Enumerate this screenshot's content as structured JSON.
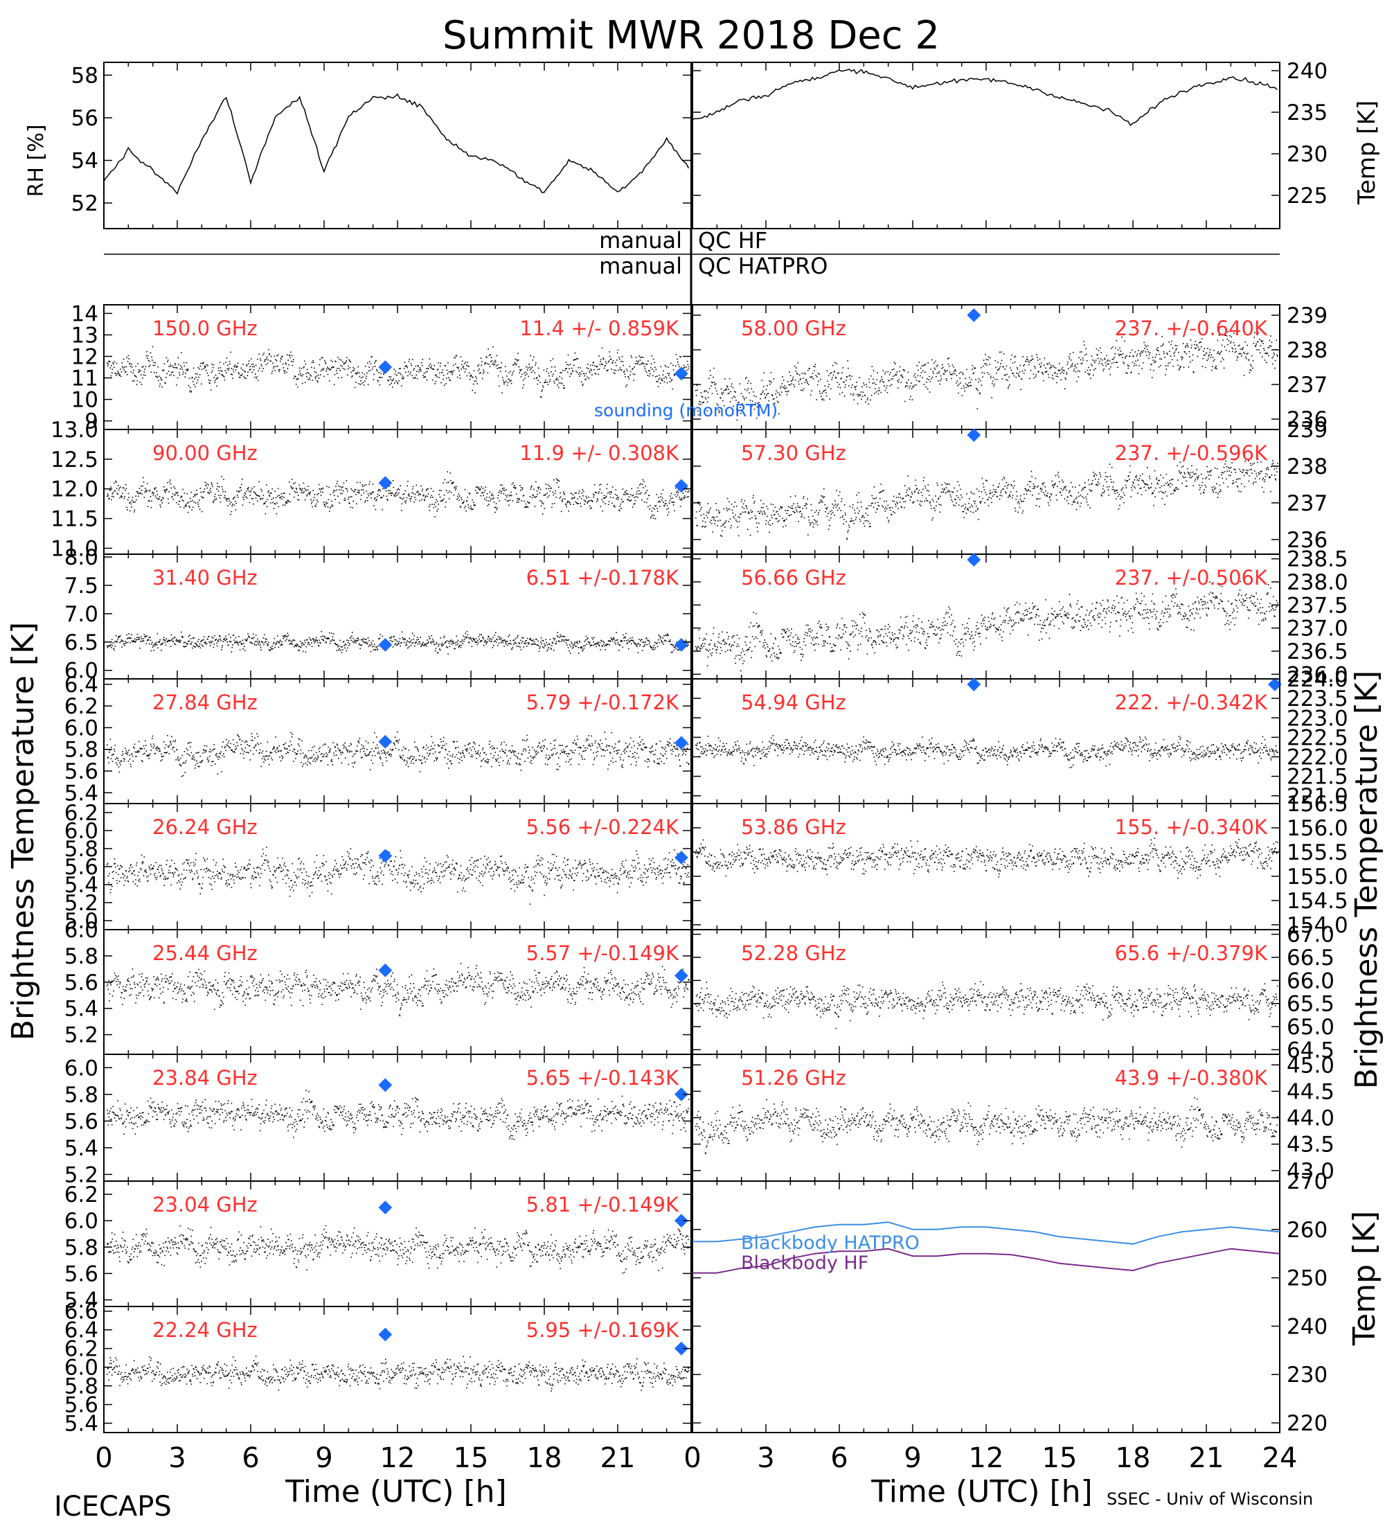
{
  "title": "Summit MWR 2018 Dec  2",
  "footer": {
    "left": "ICECAPS",
    "right": "SSEC - Univ of Wisconsin"
  },
  "xaxis": {
    "label": "Time (UTC) [h]",
    "ticks_left": [
      "0",
      "3",
      "6",
      "9",
      "12",
      "15",
      "18",
      "21"
    ],
    "ticks_right": [
      "0",
      "3",
      "6",
      "9",
      "12",
      "15",
      "18",
      "21",
      "24"
    ],
    "range": [
      0,
      24
    ]
  },
  "axis_labels": {
    "left_main": "Brightness Temperature [K]",
    "right_main": "Brightness Temperature [K]",
    "rh": "RH [%]",
    "temp_top": "Temp [K]",
    "temp_bottom": "Temp [K]"
  },
  "qc": {
    "hf_left": "manual",
    "hf_right": "QC HF",
    "hatpro_left": "manual",
    "hatpro_right": "QC HATPRO"
  },
  "legend": {
    "sounding": "sounding (monoRTM)",
    "bb_hatpro": "Blackbody HATPRO",
    "bb_hf": "Blackbody HF"
  },
  "colors": {
    "freq_text": "#ff3030",
    "sounding_marker": "#1a6cff",
    "bb_hatpro": "#3a8ee6",
    "bb_hf": "#7a2a8a",
    "trace": "#000000"
  },
  "chart_data": [
    {
      "type": "line",
      "id": "rh",
      "ylabel": "RH [%]",
      "yticks": [
        "52",
        "54",
        "56",
        "58"
      ],
      "ylim": [
        50.8,
        58.6
      ],
      "x": [
        0,
        1,
        2,
        3,
        4,
        5,
        6,
        7,
        8,
        9,
        10,
        11,
        12,
        13,
        14,
        15,
        16,
        17,
        18,
        19,
        20,
        21,
        22,
        23,
        24
      ],
      "y": [
        53,
        54.5,
        53.5,
        52.5,
        55,
        57,
        53,
        56,
        57,
        53.5,
        56,
        57,
        57,
        56.5,
        55,
        54.2,
        54,
        53.2,
        52.5,
        54,
        53.5,
        52.5,
        53.5,
        55,
        53.5
      ]
    },
    {
      "type": "line",
      "id": "temp_air",
      "ylabel": "Temp [K]",
      "yticks": [
        "225",
        "230",
        "235",
        "240"
      ],
      "ylim": [
        221,
        241
      ],
      "x": [
        0,
        1,
        2,
        3,
        4,
        5,
        6,
        7,
        8,
        9,
        10,
        11,
        12,
        13,
        14,
        15,
        16,
        17,
        18,
        19,
        20,
        21,
        22,
        23,
        24
      ],
      "y": [
        234,
        235,
        236.5,
        237,
        238.5,
        239,
        240,
        240,
        239,
        238,
        238.5,
        238.8,
        239,
        238.5,
        237.8,
        236.8,
        236,
        235.2,
        233.5,
        236,
        237.5,
        238.5,
        239.2,
        238.6,
        237.8
      ]
    },
    {
      "type": "scatter",
      "id": "ch150",
      "freq": "150.0 GHz",
      "stats": "11.4 +/- 0.859K",
      "ylim": [
        8.6,
        14.4
      ],
      "yticks": [
        "9",
        "10",
        "11",
        "12",
        "13",
        "14"
      ],
      "mean": 11.4,
      "sd": 0.859,
      "sounding_x": [
        11.5,
        23.6
      ],
      "sounding_y": [
        11.5,
        11.2
      ]
    },
    {
      "type": "scatter",
      "id": "ch90",
      "freq": "90.00 GHz",
      "stats": "11.9 +/- 0.308K",
      "ylim": [
        10.9,
        13.0
      ],
      "yticks": [
        "11.0",
        "11.5",
        "12.0",
        "12.5",
        "13.0"
      ],
      "mean": 11.9,
      "sd": 0.308,
      "sounding_x": [
        11.5,
        23.6
      ],
      "sounding_y": [
        12.1,
        12.05
      ]
    },
    {
      "type": "scatter",
      "id": "ch3140",
      "freq": "31.40 GHz",
      "stats": "6.51 +/-0.178K",
      "ylim": [
        5.85,
        8.05
      ],
      "yticks": [
        "6.0",
        "6.5",
        "7.0",
        "7.5",
        "8.0"
      ],
      "mean": 6.51,
      "sd": 0.178,
      "sounding_x": [
        11.5,
        23.6
      ],
      "sounding_y": [
        6.45,
        6.45
      ]
    },
    {
      "type": "scatter",
      "id": "ch2784",
      "freq": "27.84 GHz",
      "stats": "5.79 +/-0.172K",
      "ylim": [
        5.3,
        6.45
      ],
      "yticks": [
        "5.4",
        "5.6",
        "5.8",
        "6.0",
        "6.2",
        "6.4"
      ],
      "mean": 5.79,
      "sd": 0.172,
      "sounding_x": [
        11.5,
        23.6
      ],
      "sounding_y": [
        5.87,
        5.86
      ]
    },
    {
      "type": "scatter",
      "id": "ch2624",
      "freq": "26.24 GHz",
      "stats": "5.56 +/-0.224K",
      "ylim": [
        4.9,
        6.3
      ],
      "yticks": [
        "5.0",
        "5.2",
        "5.4",
        "5.6",
        "5.8",
        "6.0",
        "6.2"
      ],
      "mean": 5.56,
      "sd": 0.224,
      "sounding_x": [
        11.5,
        23.6
      ],
      "sounding_y": [
        5.72,
        5.7
      ]
    },
    {
      "type": "scatter",
      "id": "ch2544",
      "freq": "25.44 GHz",
      "stats": "5.57 +/-0.149K",
      "ylim": [
        5.05,
        6.0
      ],
      "yticks": [
        "5.2",
        "5.4",
        "5.6",
        "5.8",
        "6.0"
      ],
      "mean": 5.57,
      "sd": 0.149,
      "sounding_x": [
        11.5,
        23.6
      ],
      "sounding_y": [
        5.69,
        5.65
      ]
    },
    {
      "type": "scatter",
      "id": "ch2384",
      "freq": "23.84 GHz",
      "stats": "5.65 +/-0.143K",
      "ylim": [
        5.15,
        6.1
      ],
      "yticks": [
        "5.2",
        "5.4",
        "5.6",
        "5.8",
        "6.0"
      ],
      "mean": 5.65,
      "sd": 0.143,
      "sounding_x": [
        11.5,
        23.6
      ],
      "sounding_y": [
        5.87,
        5.8
      ]
    },
    {
      "type": "scatter",
      "id": "ch2304",
      "freq": "23.04 GHz",
      "stats": "5.81 +/-0.149K",
      "ylim": [
        5.35,
        6.3
      ],
      "yticks": [
        "5.4",
        "5.6",
        "5.8",
        "6.0",
        "6.2"
      ],
      "mean": 5.81,
      "sd": 0.149,
      "sounding_x": [
        11.5,
        23.6
      ],
      "sounding_y": [
        6.1,
        6.0
      ]
    },
    {
      "type": "scatter",
      "id": "ch2224",
      "freq": "22.24 GHz",
      "stats": "5.95 +/-0.169K",
      "ylim": [
        5.3,
        6.65
      ],
      "yticks": [
        "5.4",
        "5.6",
        "5.8",
        "6.0",
        "6.2",
        "6.4",
        "6.6"
      ],
      "mean": 5.95,
      "sd": 0.169,
      "sounding_x": [
        11.5,
        23.6
      ],
      "sounding_y": [
        6.35,
        6.2
      ]
    },
    {
      "type": "scatter",
      "id": "ch5800",
      "freq": "58.00 GHz",
      "stats": "237. +/-0.640K",
      "ylim": [
        235.7,
        239.3
      ],
      "yticks": [
        "236",
        "237",
        "238",
        "239"
      ],
      "mean": 237.4,
      "sd": 0.64,
      "trend": [
        -0.7,
        0.7
      ],
      "sounding_x": [
        11.5
      ],
      "sounding_y": [
        239.0
      ]
    },
    {
      "type": "scatter",
      "id": "ch5730",
      "freq": "57.30 GHz",
      "stats": "237. +/-0.596K",
      "ylim": [
        235.6,
        239.0
      ],
      "yticks": [
        "236",
        "237",
        "238",
        "239"
      ],
      "mean": 237.2,
      "sd": 0.596,
      "trend": [
        -0.6,
        0.6
      ],
      "sounding_x": [
        11.5
      ],
      "sounding_y": [
        239.0
      ]
    },
    {
      "type": "scatter",
      "id": "ch5666",
      "freq": "56.66 GHz",
      "stats": "237. +/-0.506K",
      "ylim": [
        235.9,
        238.6
      ],
      "yticks": [
        "236.0",
        "236.5",
        "237.0",
        "237.5",
        "238.0",
        "238.5"
      ],
      "mean": 237.1,
      "sd": 0.506,
      "trend": [
        -0.5,
        0.5
      ],
      "sounding_x": [
        11.5
      ],
      "sounding_y": [
        238.6
      ]
    },
    {
      "type": "scatter",
      "id": "ch5494",
      "freq": "54.94 GHz",
      "stats": "222. +/-0.342K",
      "ylim": [
        220.8,
        224.0
      ],
      "yticks": [
        "221.0",
        "221.5",
        "222.0",
        "222.5",
        "223.0",
        "223.5",
        "224.0"
      ],
      "mean": 222.2,
      "sd": 0.342,
      "sounding_x": [
        11.5,
        23.8
      ],
      "sounding_y": [
        224.0,
        224.0
      ]
    },
    {
      "type": "scatter",
      "id": "ch5386",
      "freq": "53.86 GHz",
      "stats": "155. +/-0.340K",
      "ylim": [
        153.9,
        156.5
      ],
      "yticks": [
        "154.0",
        "154.5",
        "155.0",
        "155.5",
        "156.0",
        "156.5"
      ],
      "mean": 155.4,
      "sd": 0.34,
      "sounding_x": [],
      "sounding_y": []
    },
    {
      "type": "scatter",
      "id": "ch5228",
      "freq": "52.28 GHz",
      "stats": "65.6 +/-0.379K",
      "ylim": [
        64.4,
        67.1
      ],
      "yticks": [
        "64.5",
        "65.0",
        "65.5",
        "66.0",
        "66.5",
        "67.0"
      ],
      "mean": 65.6,
      "sd": 0.379,
      "sounding_x": [],
      "sounding_y": []
    },
    {
      "type": "scatter",
      "id": "ch5126",
      "freq": "51.26 GHz",
      "stats": "43.9 +/-0.380K",
      "ylim": [
        42.8,
        45.2
      ],
      "yticks": [
        "43.0",
        "43.5",
        "44.0",
        "44.5",
        "45.0"
      ],
      "mean": 43.9,
      "sd": 0.38,
      "sounding_x": [],
      "sounding_y": []
    },
    {
      "type": "line",
      "id": "blackbody",
      "ylabel": "Temp [K]",
      "ylim": [
        218,
        270
      ],
      "yticks": [
        "220",
        "230",
        "240",
        "250",
        "260",
        "270"
      ],
      "x": [
        0,
        1,
        2,
        3,
        4,
        5,
        6,
        7,
        8,
        9,
        10,
        11,
        12,
        13,
        14,
        15,
        16,
        17,
        18,
        19,
        20,
        21,
        22,
        23,
        24
      ],
      "series": [
        {
          "name": "Blackbody HATPRO",
          "y": [
            257.5,
            257.5,
            258,
            258.5,
            259.5,
            260.5,
            261,
            261,
            261.5,
            260,
            260,
            260.5,
            260.5,
            260,
            259.5,
            258.5,
            258,
            257.5,
            257,
            258.5,
            259.5,
            260,
            260.5,
            260,
            259.5
          ]
        },
        {
          "name": "Blackbody HF",
          "y": [
            251,
            251,
            252,
            252.5,
            254,
            255,
            255.5,
            255.5,
            256,
            254.5,
            254.5,
            255,
            255,
            254.8,
            254,
            253,
            252.5,
            252,
            251.5,
            253,
            254,
            255,
            256,
            255.5,
            255
          ]
        }
      ]
    }
  ]
}
